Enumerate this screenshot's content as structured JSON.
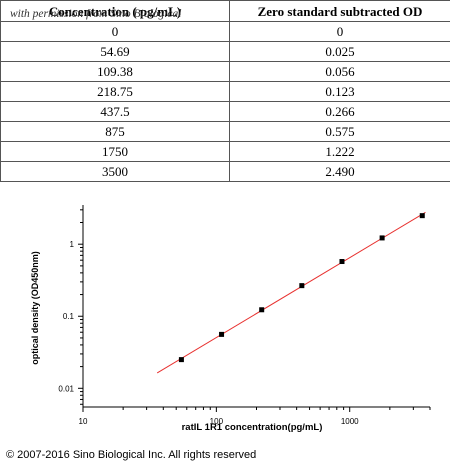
{
  "table": {
    "headers": [
      "Concentration ( pg/mL)",
      "Zero standard subtracted OD"
    ],
    "rows": [
      [
        "0",
        "0"
      ],
      [
        "54.69",
        "0.025"
      ],
      [
        "109.38",
        "0.056"
      ],
      [
        "218.75",
        "0.123"
      ],
      [
        "437.5",
        "0.266"
      ],
      [
        "875",
        "0.575"
      ],
      [
        "1750",
        "1.222"
      ],
      [
        "3500",
        "2.490"
      ]
    ]
  },
  "watermark": "with permission from Sino Biological",
  "copyright": "© 2007-2016 Sino Biological Inc. All rights reserved",
  "chart_data": {
    "type": "scatter",
    "xlabel": "ratIL 1R1  concentration(pg/mL)",
    "ylabel": "optical density (OD450nm)",
    "x_scale": "log",
    "y_scale": "log",
    "xlim": [
      10,
      4000
    ],
    "ylim": [
      0.0055,
      3.5
    ],
    "x_ticks": [
      10,
      100,
      1000
    ],
    "y_ticks": [
      0.01,
      0.1,
      1
    ],
    "x_tick_labels": [
      "10",
      "100",
      "1000"
    ],
    "y_tick_labels": [
      "0.01",
      "0.1",
      "1"
    ],
    "points": [
      {
        "x": 54.69,
        "y": 0.025
      },
      {
        "x": 109.38,
        "y": 0.056
      },
      {
        "x": 218.75,
        "y": 0.123
      },
      {
        "x": 437.5,
        "y": 0.266
      },
      {
        "x": 875,
        "y": 0.575
      },
      {
        "x": 1750,
        "y": 1.222
      },
      {
        "x": 3500,
        "y": 2.49
      }
    ],
    "fit_line": {
      "x_start": 36,
      "x_end": 3700,
      "color": "#e8312f"
    },
    "marker_color": "#000000",
    "grid": false
  }
}
